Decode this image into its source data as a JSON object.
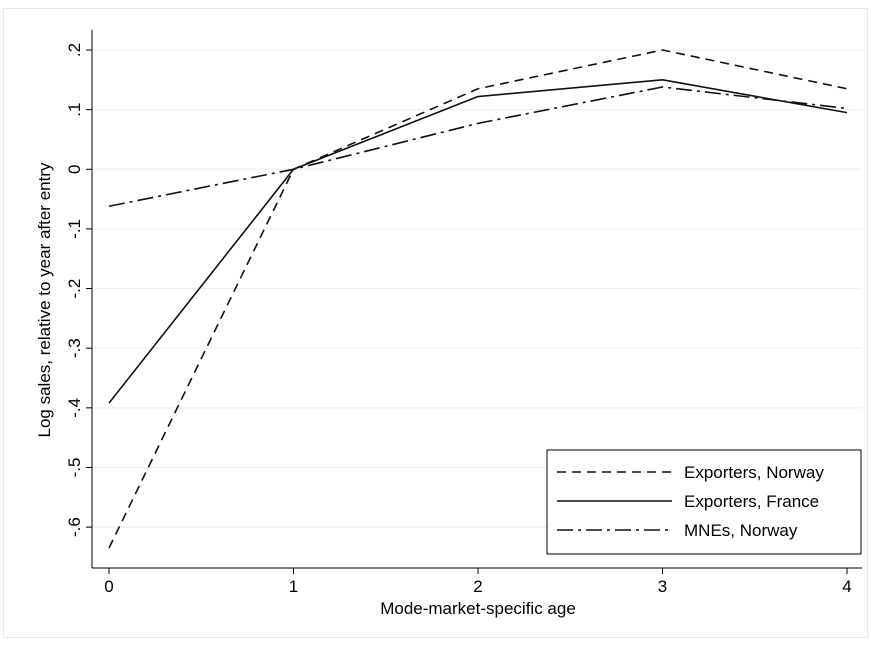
{
  "chart_data": {
    "type": "line",
    "title": "",
    "xlabel": "Mode-market-specific age",
    "ylabel": "Log sales, relative to year after entry",
    "x": [
      0,
      1,
      2,
      3,
      4
    ],
    "xticks": [
      "0",
      "1",
      "2",
      "3",
      "4"
    ],
    "yticks": [
      -0.6,
      -0.5,
      -0.4,
      -0.3,
      -0.2,
      -0.1,
      0,
      0.1,
      0.2
    ],
    "ytick_labels": [
      "-.6",
      "-.5",
      "-.4",
      "-.3",
      "-.2",
      "-.1",
      "0",
      ".1",
      ".2"
    ],
    "xlim": [
      0,
      4
    ],
    "ylim": [
      -0.635,
      0.2
    ],
    "grid": "horizontal",
    "legend_position": "bottom-right",
    "series": [
      {
        "name": "Exporters, Norway",
        "values": [
          -0.635,
          0.0,
          0.135,
          0.2,
          0.135
        ],
        "dash": "dashed"
      },
      {
        "name": "Exporters, France",
        "values": [
          -0.392,
          0.0,
          0.122,
          0.15,
          0.095
        ],
        "dash": "solid"
      },
      {
        "name": "MNEs, Norway",
        "values": [
          -0.062,
          0.0,
          0.077,
          0.138,
          0.102
        ],
        "dash": "dash-dot"
      }
    ]
  }
}
